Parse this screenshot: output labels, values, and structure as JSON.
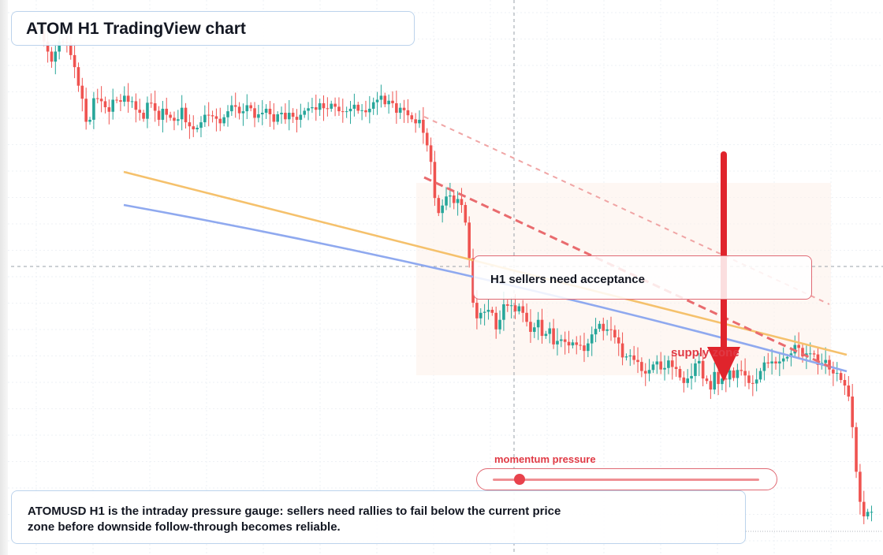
{
  "title": "ATOM H1 TradingView chart",
  "callout": "H1 sellers need acceptance",
  "zone_label": "supply zone",
  "gauge": {
    "label": "momentum pressure",
    "level": 0.1
  },
  "caption": "ATOMUSD H1 is the intraday pressure gauge: sellers need rallies to fail below the current price zone before downside follow-through becomes reliable.",
  "colors": {
    "up": "#26a69a",
    "down": "#ef5350",
    "accent": "#e03a45",
    "ma_fast": "#f5c16c",
    "ma_slow": "#8fa9ef"
  },
  "chart_data": {
    "type": "candlestick",
    "symbol": "ATOMUSD",
    "timeframe": "H1",
    "ylim": [
      0,
      100
    ],
    "closes": [
      100.1,
      100.3,
      98.0,
      96.0,
      94.0,
      96.0,
      98.0,
      97.9,
      97.7,
      95.3,
      92.9,
      89.2,
      86.6,
      82.0,
      82.4,
      86.7,
      86.6,
      86.1,
      84.9,
      84.0,
      86.4,
      86.3,
      86.0,
      87.2,
      86.0,
      86.1,
      84.4,
      83.8,
      82.6,
      85.8,
      85.7,
      84.2,
      82.4,
      84.6,
      83.4,
      82.8,
      82.2,
      82.5,
      84.8,
      81.9,
      81.1,
      80.5,
      80.8,
      81.9,
      83.4,
      83.3,
      83.1,
      82.6,
      81.7,
      82.9,
      84.1,
      85.3,
      85.0,
      83.7,
      84.1,
      85.3,
      84.7,
      82.8,
      83.5,
      83.8,
      84.6,
      83.5,
      82.0,
      83.5,
      83.8,
      82.5,
      83.8,
      83.0,
      82.4,
      83.4,
      84.2,
      84.7,
      84.9,
      84.4,
      85.7,
      84.7,
      84.6,
      85.6,
      85.0,
      84.1,
      84.0,
      84.1,
      84.6,
      85.4,
      84.2,
      84.3,
      83.9,
      84.6,
      85.9,
      86.4,
      87.2,
      85.5,
      86.2,
      85.7,
      83.8,
      84.8,
      84.3,
      83.3,
      82.5,
      81.7,
      82.4,
      79.8,
      77.3,
      74.0,
      66.8,
      63.8,
      65.3,
      67.1,
      67.3,
      65.8,
      66.6,
      65.4,
      61.9,
      54.8,
      45.9,
      42.8,
      43.9,
      44.1,
      44.5,
      43.9,
      40.6,
      42.5,
      45.6,
      45.3,
      45.4,
      44.2,
      45.2,
      43.9,
      42.1,
      40.1,
      41.0,
      42.5,
      39.3,
      39.7,
      40.8,
      37.6,
      38.3,
      38.6,
      38.1,
      37.4,
      38.0,
      37.5,
      37.4,
      36.3,
      37.8,
      39.6,
      40.7,
      41.7,
      40.3,
      40.6,
      40.5,
      39.0,
      37.8,
      35.0,
      35.2,
      35.4,
      34.5,
      34.1,
      32.3,
      31.8,
      32.5,
      33.6,
      34.2,
      32.6,
      32.9,
      34.4,
      33.1,
      32.7,
      31.0,
      29.9,
      30.8,
      31.3,
      33.8,
      34.3,
      30.8,
      30.3,
      28.6,
      32.1,
      29.7,
      30.8,
      30.6,
      32.4,
      30.9,
      32.5,
      32.3,
      31.4,
      29.9,
      29.8,
      30.6,
      32.3,
      34.0,
      33.8,
      34.2,
      33.8,
      34.2,
      34.8,
      35.1,
      35.8,
      37.5,
      36.9,
      35.2,
      35.8,
      35.8,
      35.6,
      33.5,
      33.9,
      34.5,
      32.6,
      31.8,
      31.9,
      30.5,
      29.4,
      27.2,
      21.1,
      12.2,
      6.2,
      3.3,
      4.2,
      4.2
    ]
  }
}
